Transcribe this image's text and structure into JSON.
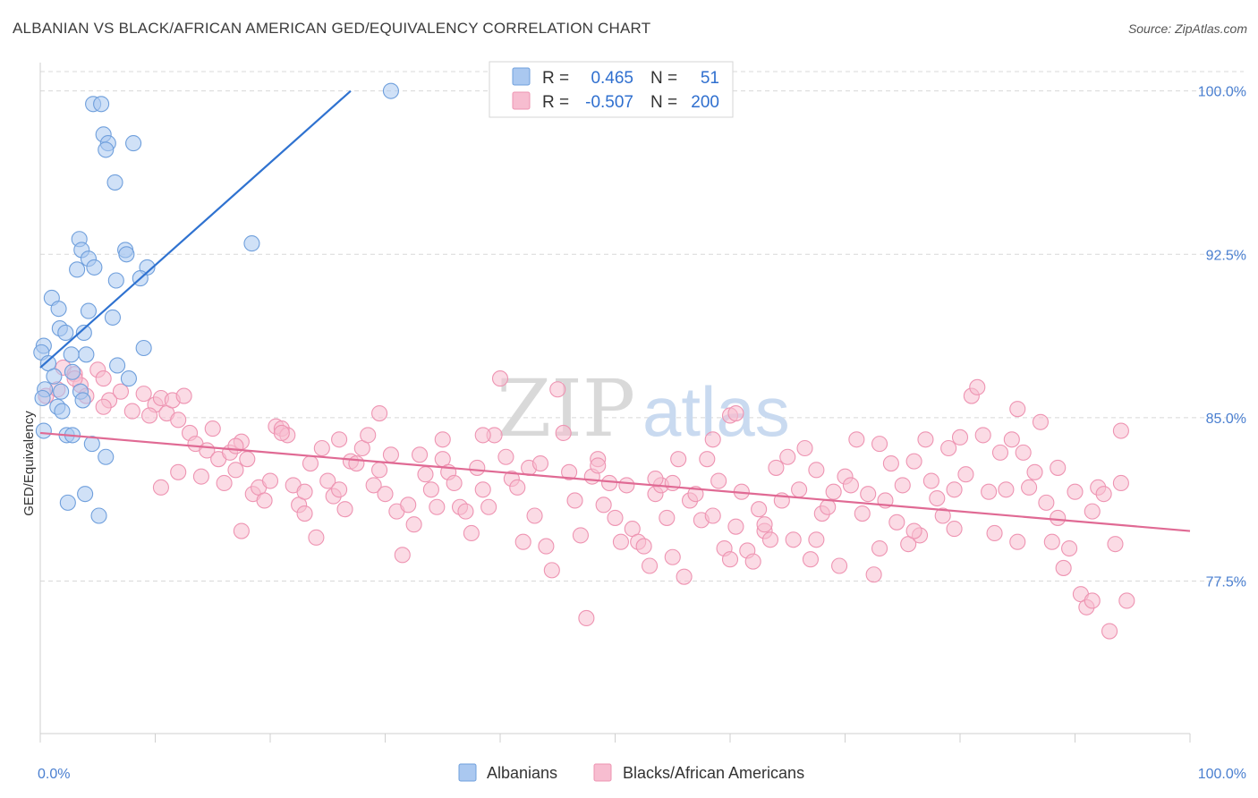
{
  "title": "ALBANIAN VS BLACK/AFRICAN AMERICAN GED/EQUIVALENCY CORRELATION CHART",
  "source": "Source: ZipAtlas.com",
  "watermark": {
    "zip": "ZIP",
    "atlas": "atlas"
  },
  "colors": {
    "blue_fill": "#aac8f0",
    "blue_stroke": "#6f9fdc",
    "blue_line": "#2f72d0",
    "pink_fill": "#f7bdd0",
    "pink_stroke": "#ee94b2",
    "pink_line": "#e06a94",
    "grid": "#d8d8d8",
    "tick_text": "#4a7fd0"
  },
  "legend": {
    "rows": [
      {
        "r_label": "R =",
        "r_value": "0.465",
        "n_label": "N =",
        "n_value": "51"
      },
      {
        "r_label": "R =",
        "r_value": "-0.507",
        "n_label": "N =",
        "n_value": "200"
      }
    ]
  },
  "bottom_legend": [
    "Albanians",
    "Blacks/African Americans"
  ],
  "chart_data": {
    "type": "scatter",
    "xlabel": "",
    "ylabel": "GED/Equivalency",
    "xlim": [
      0,
      100
    ],
    "ylim": [
      70.5,
      101.3
    ],
    "x_tick_labels": [
      "0.0%",
      "100.0%"
    ],
    "y_ticks": [
      77.5,
      85.0,
      92.5,
      100.0
    ],
    "y_tick_labels": [
      "77.5%",
      "85.0%",
      "92.5%",
      "100.0%"
    ],
    "grid": "horizontal dashed",
    "series": [
      {
        "name": "Albanians",
        "trend": {
          "x": [
            0.0,
            27.0
          ],
          "y": [
            87.3,
            100.0
          ]
        },
        "points": [
          [
            4.6,
            99.4
          ],
          [
            5.3,
            99.4
          ],
          [
            30.5,
            100.0
          ],
          [
            5.5,
            98.0
          ],
          [
            8.1,
            97.6
          ],
          [
            5.9,
            97.6
          ],
          [
            5.7,
            97.3
          ],
          [
            6.5,
            95.8
          ],
          [
            18.4,
            93.0
          ],
          [
            3.4,
            93.2
          ],
          [
            7.4,
            92.7
          ],
          [
            7.5,
            92.5
          ],
          [
            3.6,
            92.7
          ],
          [
            4.2,
            92.3
          ],
          [
            4.7,
            91.9
          ],
          [
            3.2,
            91.8
          ],
          [
            9.3,
            91.9
          ],
          [
            8.7,
            91.4
          ],
          [
            6.6,
            91.3
          ],
          [
            1.0,
            90.5
          ],
          [
            1.6,
            90.0
          ],
          [
            4.2,
            89.9
          ],
          [
            6.3,
            89.6
          ],
          [
            1.7,
            89.1
          ],
          [
            2.2,
            88.9
          ],
          [
            3.8,
            88.9
          ],
          [
            0.3,
            88.3
          ],
          [
            9.0,
            88.2
          ],
          [
            0.1,
            88.0
          ],
          [
            2.7,
            87.9
          ],
          [
            4.0,
            87.9
          ],
          [
            0.7,
            87.5
          ],
          [
            6.7,
            87.4
          ],
          [
            2.8,
            87.1
          ],
          [
            1.2,
            86.9
          ],
          [
            7.7,
            86.8
          ],
          [
            0.4,
            86.3
          ],
          [
            1.8,
            86.2
          ],
          [
            3.5,
            86.2
          ],
          [
            0.2,
            85.9
          ],
          [
            3.7,
            85.8
          ],
          [
            1.5,
            85.5
          ],
          [
            1.9,
            85.3
          ],
          [
            0.3,
            84.4
          ],
          [
            2.3,
            84.2
          ],
          [
            2.8,
            84.2
          ],
          [
            4.5,
            83.8
          ],
          [
            5.7,
            83.2
          ],
          [
            3.9,
            81.5
          ],
          [
            2.4,
            81.1
          ],
          [
            5.1,
            80.5
          ]
        ]
      },
      {
        "name": "Blacks/African Americans",
        "trend": {
          "x": [
            0.0,
            100.0
          ],
          "y": [
            84.3,
            79.8
          ]
        },
        "points": [
          [
            0.5,
            86.0
          ],
          [
            1.5,
            86.3
          ],
          [
            2.0,
            87.3
          ],
          [
            3.0,
            87.0
          ],
          [
            3.5,
            86.5
          ],
          [
            4.0,
            86.0
          ],
          [
            5.0,
            87.2
          ],
          [
            5.5,
            86.8
          ],
          [
            6.0,
            85.8
          ],
          [
            7.0,
            86.2
          ],
          [
            8.0,
            85.3
          ],
          [
            9.0,
            86.1
          ],
          [
            10.0,
            85.6
          ],
          [
            10.5,
            85.9
          ],
          [
            11.0,
            85.2
          ],
          [
            11.5,
            85.8
          ],
          [
            12.5,
            86.0
          ],
          [
            13.0,
            84.3
          ],
          [
            13.5,
            83.8
          ],
          [
            14.0,
            82.3
          ],
          [
            14.5,
            83.5
          ],
          [
            15.0,
            84.5
          ],
          [
            15.5,
            83.1
          ],
          [
            16.0,
            82.0
          ],
          [
            16.5,
            83.4
          ],
          [
            17.0,
            82.6
          ],
          [
            17.5,
            83.9
          ],
          [
            18.0,
            83.1
          ],
          [
            18.5,
            81.5
          ],
          [
            19.0,
            81.8
          ],
          [
            19.5,
            81.2
          ],
          [
            20.0,
            82.1
          ],
          [
            20.5,
            84.6
          ],
          [
            21.0,
            84.5
          ],
          [
            21.5,
            84.2
          ],
          [
            22.0,
            81.9
          ],
          [
            22.5,
            81.0
          ],
          [
            23.0,
            80.6
          ],
          [
            23.5,
            82.9
          ],
          [
            24.0,
            79.5
          ],
          [
            24.5,
            83.6
          ],
          [
            25.0,
            82.1
          ],
          [
            25.5,
            81.4
          ],
          [
            26.0,
            81.7
          ],
          [
            26.5,
            80.8
          ],
          [
            27.0,
            83.0
          ],
          [
            27.5,
            82.9
          ],
          [
            28.0,
            83.6
          ],
          [
            28.5,
            84.2
          ],
          [
            29.0,
            81.9
          ],
          [
            29.5,
            82.6
          ],
          [
            30.0,
            81.5
          ],
          [
            30.5,
            83.3
          ],
          [
            31.0,
            80.7
          ],
          [
            31.5,
            78.7
          ],
          [
            32.0,
            81.0
          ],
          [
            32.5,
            80.1
          ],
          [
            33.0,
            83.3
          ],
          [
            33.5,
            82.4
          ],
          [
            34.0,
            81.7
          ],
          [
            34.5,
            80.9
          ],
          [
            35.0,
            83.1
          ],
          [
            35.5,
            82.5
          ],
          [
            36.0,
            82.0
          ],
          [
            36.5,
            80.9
          ],
          [
            37.0,
            80.7
          ],
          [
            37.5,
            79.7
          ],
          [
            38.0,
            82.7
          ],
          [
            38.5,
            81.7
          ],
          [
            39.0,
            80.9
          ],
          [
            39.5,
            84.2
          ],
          [
            40.0,
            86.8
          ],
          [
            40.5,
            83.2
          ],
          [
            41.0,
            82.2
          ],
          [
            41.5,
            81.8
          ],
          [
            42.0,
            79.3
          ],
          [
            42.5,
            82.7
          ],
          [
            43.0,
            80.5
          ],
          [
            43.5,
            82.9
          ],
          [
            44.0,
            79.1
          ],
          [
            44.5,
            78.0
          ],
          [
            45.0,
            86.3
          ],
          [
            45.5,
            84.3
          ],
          [
            46.0,
            82.5
          ],
          [
            46.5,
            81.2
          ],
          [
            47.0,
            79.6
          ],
          [
            47.5,
            75.8
          ],
          [
            48.0,
            82.3
          ],
          [
            48.5,
            83.1
          ],
          [
            49.0,
            81.0
          ],
          [
            49.5,
            82.0
          ],
          [
            50.0,
            80.4
          ],
          [
            50.5,
            79.3
          ],
          [
            51.0,
            81.9
          ],
          [
            51.5,
            79.9
          ],
          [
            52.0,
            79.3
          ],
          [
            52.5,
            79.1
          ],
          [
            53.0,
            78.2
          ],
          [
            53.5,
            81.5
          ],
          [
            54.0,
            81.9
          ],
          [
            54.5,
            80.4
          ],
          [
            55.0,
            78.6
          ],
          [
            55.5,
            83.1
          ],
          [
            56.0,
            77.7
          ],
          [
            56.5,
            81.2
          ],
          [
            57.0,
            81.5
          ],
          [
            57.5,
            80.3
          ],
          [
            58.0,
            83.1
          ],
          [
            58.5,
            80.5
          ],
          [
            59.0,
            82.1
          ],
          [
            59.5,
            79.0
          ],
          [
            60.0,
            85.1
          ],
          [
            60.5,
            80.0
          ],
          [
            61.0,
            81.6
          ],
          [
            61.5,
            78.9
          ],
          [
            62.0,
            78.4
          ],
          [
            62.5,
            80.8
          ],
          [
            63.0,
            79.8
          ],
          [
            63.5,
            79.4
          ],
          [
            64.0,
            82.7
          ],
          [
            64.5,
            81.2
          ],
          [
            65.0,
            83.2
          ],
          [
            65.5,
            79.4
          ],
          [
            66.0,
            81.7
          ],
          [
            66.5,
            83.6
          ],
          [
            67.0,
            78.5
          ],
          [
            67.5,
            82.6
          ],
          [
            68.0,
            80.6
          ],
          [
            68.5,
            80.9
          ],
          [
            69.0,
            81.6
          ],
          [
            69.5,
            78.2
          ],
          [
            70.0,
            82.3
          ],
          [
            70.5,
            81.9
          ],
          [
            71.0,
            84.0
          ],
          [
            71.5,
            80.6
          ],
          [
            72.0,
            81.5
          ],
          [
            72.5,
            77.8
          ],
          [
            73.0,
            83.8
          ],
          [
            73.5,
            81.2
          ],
          [
            74.0,
            82.9
          ],
          [
            74.5,
            80.2
          ],
          [
            75.0,
            81.9
          ],
          [
            75.5,
            79.2
          ],
          [
            76.0,
            83.0
          ],
          [
            76.5,
            79.6
          ],
          [
            77.0,
            84.0
          ],
          [
            77.5,
            82.1
          ],
          [
            78.0,
            81.3
          ],
          [
            78.5,
            80.5
          ],
          [
            79.0,
            83.6
          ],
          [
            79.5,
            81.7
          ],
          [
            80.0,
            84.1
          ],
          [
            80.5,
            82.4
          ],
          [
            81.0,
            86.0
          ],
          [
            81.5,
            86.4
          ],
          [
            82.0,
            84.2
          ],
          [
            82.5,
            81.6
          ],
          [
            83.0,
            79.7
          ],
          [
            83.5,
            83.4
          ],
          [
            84.0,
            81.7
          ],
          [
            84.5,
            84.0
          ],
          [
            85.0,
            85.4
          ],
          [
            85.5,
            83.4
          ],
          [
            86.0,
            81.8
          ],
          [
            86.5,
            82.5
          ],
          [
            87.0,
            84.8
          ],
          [
            87.5,
            81.1
          ],
          [
            88.0,
            79.3
          ],
          [
            88.5,
            80.4
          ],
          [
            89.0,
            78.1
          ],
          [
            89.5,
            79.0
          ],
          [
            90.0,
            81.6
          ],
          [
            90.5,
            76.9
          ],
          [
            91.0,
            76.3
          ],
          [
            91.5,
            76.6
          ],
          [
            92.0,
            81.8
          ],
          [
            92.5,
            81.5
          ],
          [
            93.0,
            75.2
          ],
          [
            93.5,
            79.2
          ],
          [
            94.0,
            84.4
          ],
          [
            94.5,
            76.6
          ],
          [
            3.0,
            86.8
          ],
          [
            5.5,
            85.5
          ],
          [
            9.5,
            85.1
          ],
          [
            12.0,
            84.9
          ],
          [
            17.0,
            83.7
          ],
          [
            21.0,
            84.3
          ],
          [
            23.0,
            81.6
          ],
          [
            26.0,
            84.0
          ],
          [
            29.5,
            85.2
          ],
          [
            35.0,
            84.0
          ],
          [
            38.5,
            84.2
          ],
          [
            48.5,
            82.8
          ],
          [
            53.5,
            82.2
          ],
          [
            55.0,
            82.0
          ],
          [
            58.5,
            84.0
          ],
          [
            60.5,
            85.2
          ],
          [
            63.0,
            80.1
          ],
          [
            67.5,
            79.4
          ],
          [
            73.0,
            79.0
          ],
          [
            76.0,
            79.8
          ],
          [
            79.5,
            79.9
          ],
          [
            85.0,
            79.3
          ],
          [
            88.5,
            82.7
          ],
          [
            91.5,
            80.7
          ],
          [
            94.0,
            82.0
          ],
          [
            10.5,
            81.8
          ],
          [
            12.0,
            82.5
          ],
          [
            17.5,
            79.8
          ],
          [
            60.0,
            78.5
          ]
        ]
      }
    ]
  }
}
